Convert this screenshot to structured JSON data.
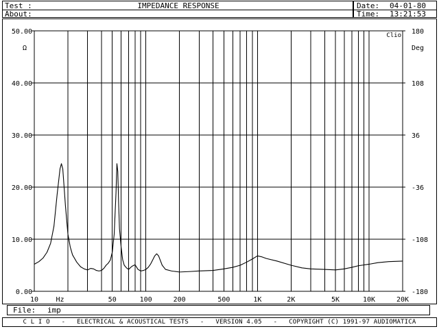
{
  "header": {
    "test_label": "Test :",
    "about_label": "About:",
    "title": "IMPEDANCE RESPONSE",
    "date_label": "Date:",
    "date_value": "04-01-80",
    "time_label": "Time:",
    "time_value": "13:21:53"
  },
  "file": {
    "label": "File:",
    "value": "imp"
  },
  "footer": {
    "text": "C L I O   -   ELECTRICAL & ACOUSTICAL TESTS   -   VERSION 4.05   -   COPYRIGHT (C) 1991-97 AUDIOMATICA"
  },
  "chart_data": {
    "type": "line",
    "title": "IMPEDANCE RESPONSE",
    "brand_label": "Clio",
    "x_scale": "log",
    "xlim": [
      10,
      20000
    ],
    "x_tick_values": [
      10,
      50,
      100,
      200,
      500,
      1000,
      2000,
      5000,
      10000,
      20000
    ],
    "x_tick_labels": [
      "10",
      "50",
      "100",
      "200",
      "500",
      "1K",
      "2K",
      "5K",
      "10K",
      "20K"
    ],
    "x_unit_label": "Hz",
    "ylim": [
      0,
      50
    ],
    "y_ticks": [
      "0.00",
      "10.00",
      "20.00",
      "30.00",
      "40.00",
      "50.00"
    ],
    "y_unit_label": "Ω",
    "y2lim": [
      -180,
      180
    ],
    "y2_ticks": [
      "-180",
      "-108",
      "-36",
      "36",
      "108",
      "180"
    ],
    "y2_unit_label": "Deg",
    "grid": true,
    "line_color": "#000000",
    "series": [
      {
        "x": [
          10,
          11,
          12,
          13,
          14,
          15,
          16,
          17,
          17.5,
          18,
          18.5,
          19,
          20,
          21,
          22,
          24,
          26,
          28,
          30,
          32,
          34,
          36,
          38,
          40,
          42,
          44,
          46,
          48,
          50,
          52,
          54,
          55,
          56,
          57,
          58,
          60,
          62,
          64,
          67,
          70,
          75,
          80,
          85,
          90,
          95,
          100,
          105,
          110,
          115,
          120,
          125,
          130,
          140,
          150,
          170,
          200,
          250,
          300,
          400,
          500,
          600,
          700,
          800,
          900,
          1000,
          1100,
          1200,
          1500,
          2000,
          2500,
          3000,
          4000,
          5000,
          6000,
          7000,
          8000,
          10000,
          12000,
          15000,
          20000
        ],
        "y": [
          5.2,
          5.7,
          6.4,
          7.5,
          9.2,
          12.5,
          18.5,
          23.5,
          24.5,
          23.5,
          20.0,
          16.5,
          11.0,
          8.5,
          7.0,
          5.6,
          4.7,
          4.3,
          4.1,
          4.4,
          4.3,
          4.0,
          3.9,
          4.0,
          4.4,
          5.0,
          5.4,
          6.0,
          7.5,
          11.0,
          19.0,
          24.5,
          23.0,
          17.0,
          12.0,
          8.5,
          6.0,
          5.0,
          4.5,
          4.2,
          4.8,
          5.1,
          4.2,
          3.9,
          4.0,
          4.2,
          4.6,
          5.2,
          6.0,
          6.8,
          7.2,
          6.8,
          5.0,
          4.2,
          3.9,
          3.7,
          3.8,
          3.9,
          4.0,
          4.3,
          4.6,
          5.0,
          5.6,
          6.2,
          6.8,
          6.6,
          6.3,
          5.8,
          5.0,
          4.5,
          4.3,
          4.2,
          4.1,
          4.3,
          4.6,
          4.9,
          5.2,
          5.5,
          5.7,
          5.8
        ]
      }
    ]
  }
}
